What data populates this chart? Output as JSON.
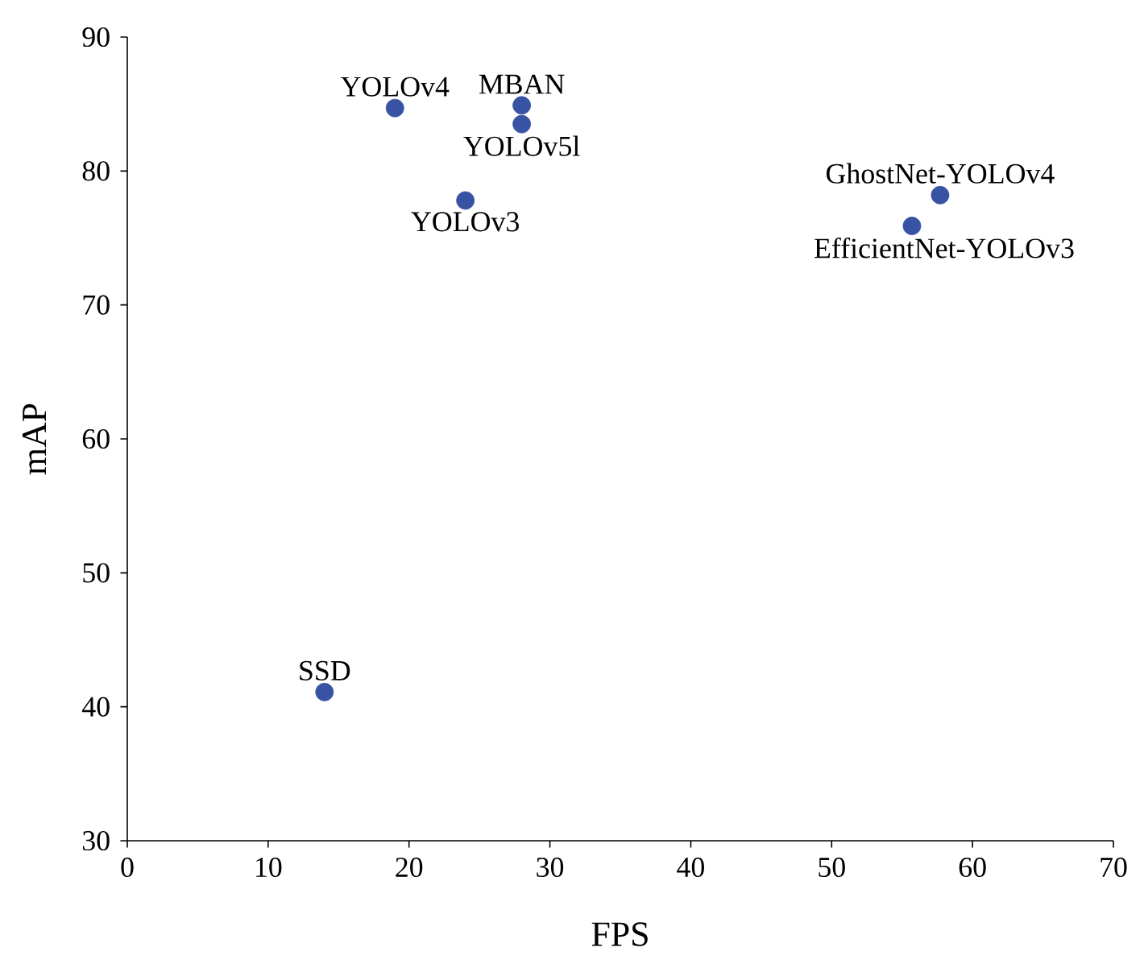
{
  "chart_data": {
    "type": "scatter",
    "xlabel": "FPS",
    "ylabel": "mAP",
    "x": [
      14,
      19,
      28,
      28,
      24,
      57.7,
      55.7
    ],
    "values": [
      41.1,
      84.7,
      84.9,
      83.5,
      77.8,
      78.2,
      75.9
    ],
    "color": "#3953a4",
    "xlim": [
      0,
      70
    ],
    "ylim": [
      30,
      90
    ],
    "xticks": [
      0,
      10,
      20,
      30,
      40,
      50,
      60,
      70
    ],
    "yticks": [
      30,
      40,
      50,
      60,
      70,
      80,
      90
    ],
    "annotations": [
      {
        "text": "SSD",
        "x": 14,
        "y": 41.1
      },
      {
        "text": "YOLOv4",
        "x": 19,
        "y": 84.7
      },
      {
        "text": "MBAN",
        "x": 28,
        "y": 84.9
      },
      {
        "text": "YOLOv5l",
        "x": 28,
        "y": 83.5
      },
      {
        "text": "YOLOv3",
        "x": 24,
        "y": 77.8
      },
      {
        "text": "GhostNet-YOLOv4",
        "x": 57.7,
        "y": 78.2
      },
      {
        "text": "EfficientNet-YOLOv3",
        "x": 55.7,
        "y": 75.9
      }
    ]
  }
}
